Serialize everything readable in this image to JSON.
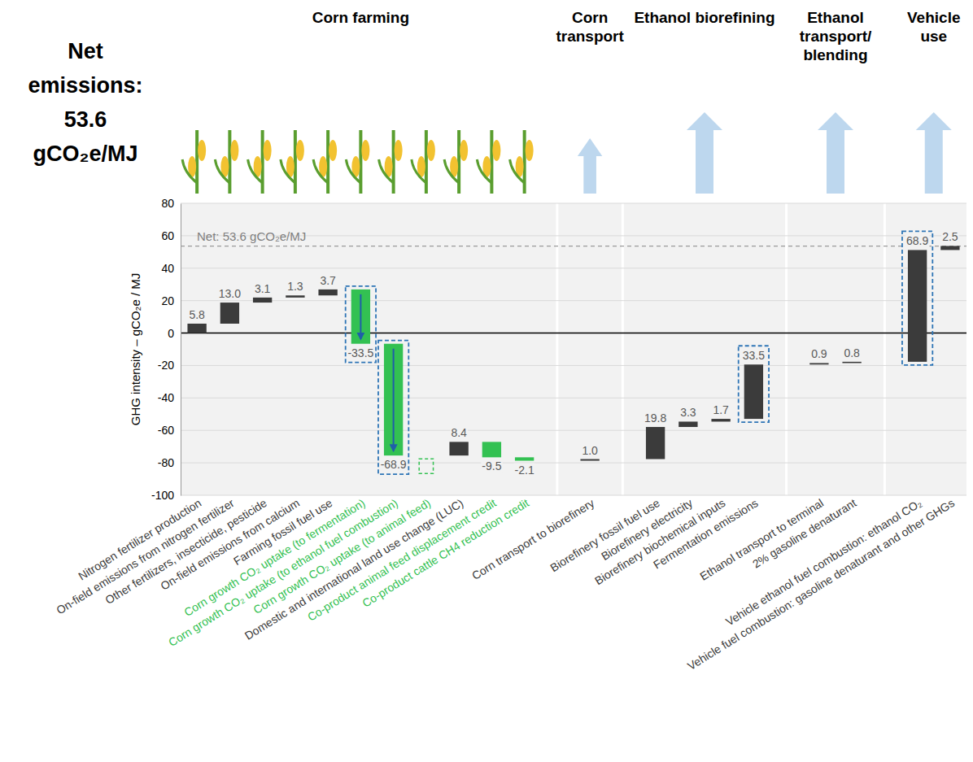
{
  "chart_data": {
    "type": "waterfall",
    "title": "Net emissions: 53.6 gCO₂e/MJ",
    "ylabel": "GHG intensity – gCO₂e / MJ",
    "ylim": [
      -100,
      80
    ],
    "yticks": [
      -100,
      -80,
      -60,
      -40,
      -20,
      0,
      20,
      40,
      60,
      80
    ],
    "grid": true,
    "data_labels": true,
    "annotations": [
      {
        "value": 53.6,
        "text": "Net: 53.6 gCO₂e/MJ",
        "line_style": "dashed"
      }
    ],
    "stages": [
      {
        "name": "Corn farming",
        "categories": [
          "Nitrogen fertilizer production",
          "On-field emissions from nitrogen fertilizer",
          "Other fertilizers, insecticide, pesticide",
          "On-field emissions from calcium",
          "Farming fossil fuel use",
          "Corn growth CO₂ uptake (to fermentation)",
          "Corn growth CO₂ uptake (to ethanol fuel combustion)",
          "Corn growth CO₂ uptake (to animal feed)",
          "Domestic and international land use change (LUC)",
          "Co-product animal feed displacement credit",
          "Co-product cattle CH4 reduction credit"
        ],
        "values": [
          5.8,
          13.0,
          3.1,
          1.3,
          3.7,
          -33.5,
          -68.9,
          null,
          8.4,
          -9.5,
          -2.1
        ],
        "value_labels": [
          "5.8",
          "13.0",
          "3.1",
          "1.3",
          "3.7",
          "-33.5",
          "-68.9",
          null,
          "8.4",
          "-9.5",
          "-2.1"
        ],
        "colors": [
          "#3b3b3b",
          "#3b3b3b",
          "#3b3b3b",
          "#3b3b3b",
          "#3b3b3b",
          "#33c152",
          "#33c152",
          "#33c152",
          "#3b3b3b",
          "#33c152",
          "#33c152"
        ]
      },
      {
        "name": "Corn transport",
        "categories": [
          "Corn transport to biorefinery"
        ],
        "values": [
          1.0
        ],
        "value_labels": [
          "1.0"
        ],
        "colors": [
          "#3b3b3b"
        ]
      },
      {
        "name": "Ethanol biorefining",
        "categories": [
          "Biorefinery fossil fuel use",
          "Biorefinery electricity",
          "Biorefinery biochemical inputs",
          "Fermentation emissions"
        ],
        "values": [
          19.8,
          3.3,
          1.7,
          33.5
        ],
        "value_labels": [
          "19.8",
          "3.3",
          "1.7",
          "33.5"
        ],
        "colors": [
          "#3b3b3b",
          "#3b3b3b",
          "#3b3b3b",
          "#3b3b3b"
        ]
      },
      {
        "name": "Ethanol transport/ blending",
        "categories": [
          "Ethanol transport to terminal",
          "2% gasoline denaturant"
        ],
        "values": [
          0.9,
          0.8
        ],
        "value_labels": [
          "0.9",
          "0.8"
        ],
        "colors": [
          "#3b3b3b",
          "#3b3b3b"
        ]
      },
      {
        "name": "Vehicle use",
        "categories": [
          "Vehicle ethanol fuel combustion: ethanol CO₂",
          "Vehicle fuel combustion: gasoline denaturant and other GHGs"
        ],
        "values": [
          68.9,
          2.5
        ],
        "value_labels": [
          "68.9",
          "2.5"
        ],
        "colors": [
          "#3b3b3b",
          "#3b3b3b"
        ]
      }
    ]
  }
}
